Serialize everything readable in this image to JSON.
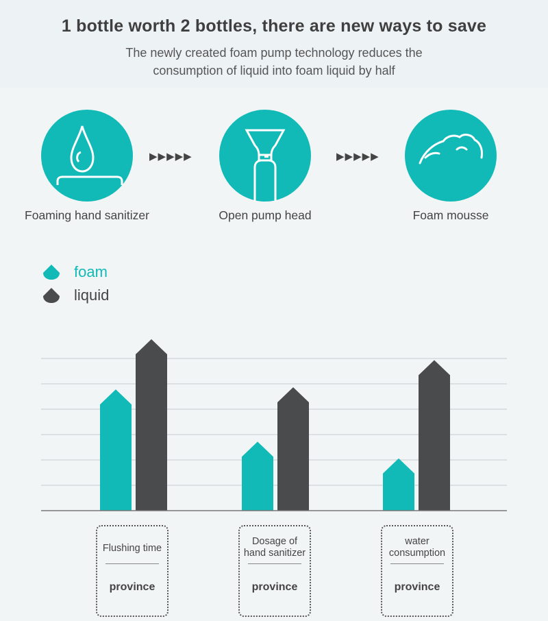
{
  "header": {
    "title": "1 bottle worth 2 bottles, there are new ways to save",
    "subtitle": "The newly created foam pump technology reduces the consumption of liquid into foam liquid by half"
  },
  "steps": [
    {
      "label": "Foaming hand sanitizer",
      "icon": "water-drop-icon"
    },
    {
      "label": "Open pump head",
      "icon": "pump-bottle-icon"
    },
    {
      "label": "Foam mousse",
      "icon": "foam-mousse-icon"
    }
  ],
  "arrows": "▶▶▶▶▶",
  "colors": {
    "accent": "#11bab7",
    "dark": "#4a4b4d"
  },
  "chart_data": {
    "type": "bar",
    "categories": [
      "Flushing time",
      "Dosage of hand sanitizer",
      "water consumption"
    ],
    "series": [
      {
        "name": "foam",
        "values": [
          58,
          33,
          25
        ]
      },
      {
        "name": "liquid",
        "values": [
          82,
          59,
          72
        ]
      }
    ],
    "ylim": [
      0,
      80
    ],
    "grid": true,
    "legend": "top-left",
    "category_note": "province"
  }
}
